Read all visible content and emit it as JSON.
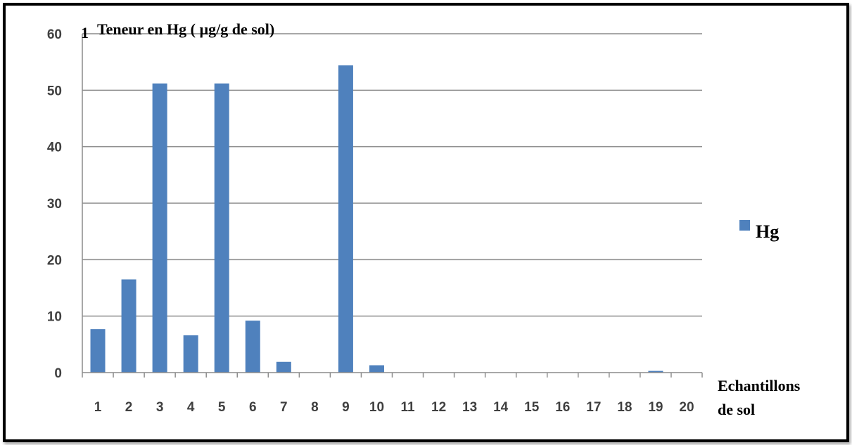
{
  "chart_data": {
    "type": "bar",
    "ylabel": "Teneur en Hg ( µg/g de sol)",
    "ylabel_prefix": "1",
    "xlabel_line1": "Echantillons",
    "xlabel_line2": "de sol",
    "categories": [
      "1",
      "2",
      "3",
      "4",
      "5",
      "6",
      "7",
      "8",
      "9",
      "10",
      "11",
      "12",
      "13",
      "14",
      "15",
      "16",
      "17",
      "18",
      "19",
      "20"
    ],
    "series": [
      {
        "name": "Hg",
        "color": "#4f81bd",
        "values": [
          7.7,
          16.5,
          51.2,
          6.6,
          51.2,
          9.2,
          1.9,
          0,
          54.4,
          1.3,
          0,
          0,
          0,
          0,
          0,
          0,
          0,
          0,
          0.3,
          0
        ]
      }
    ],
    "ylim": [
      0,
      60
    ],
    "yticks": [
      0,
      10,
      20,
      30,
      40,
      50,
      60
    ],
    "grid": true,
    "legend": "right"
  }
}
